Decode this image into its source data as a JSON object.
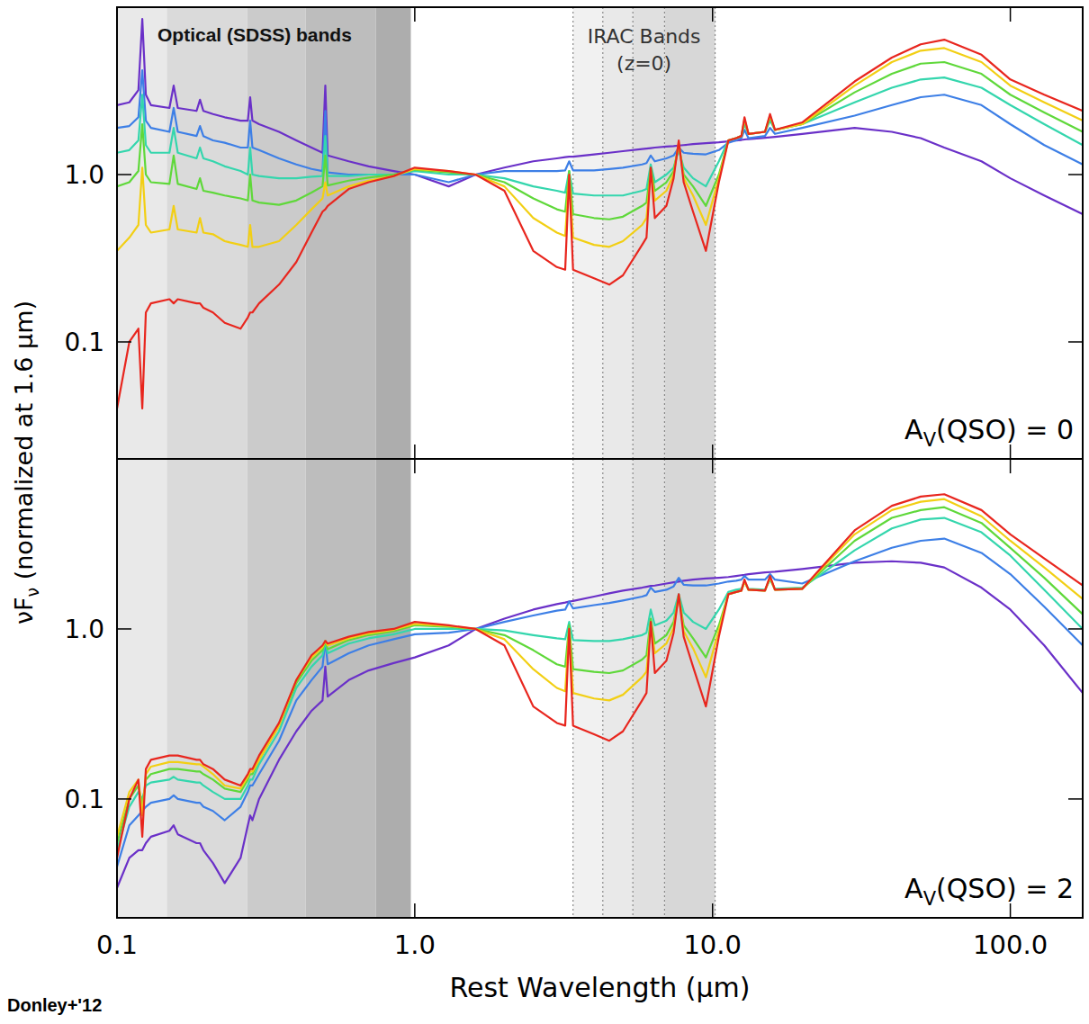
{
  "chart_data": [
    {
      "type": "line",
      "log": true,
      "tick_labels": "y",
      "xlim": [
        0.1,
        175
      ],
      "ylim": [
        0.02,
        10
      ],
      "xticks": [
        0.1,
        {
          "value": 1,
          "label": "1.0"
        },
        {
          "value": 10,
          "label": "10.0"
        },
        {
          "value": 100,
          "label": "100.0"
        }
      ],
      "yticks": [
        0.1,
        {
          "value": 1,
          "label": "1.0"
        }
      ],
      "bands": {
        "optical": [
          0.1,
          0.147,
          0.274,
          0.43,
          0.74,
          0.97
        ],
        "irac": [
          3.4,
          4.28,
          5.4,
          6.9,
          10.2
        ]
      },
      "band_labels": {
        "optical": "Optical (SDSS) bands",
        "irac": [
          "IRAC Bands",
          "(z=0)"
        ]
      },
      "panel_label": [
        {
          "text": "A"
        },
        {
          "text": "V",
          "sub": true
        },
        {
          "text": "(QSO) = 0"
        }
      ],
      "x": [
        0.1,
        0.11,
        0.118,
        0.1216,
        0.125,
        0.13,
        0.15,
        0.155,
        0.16,
        0.185,
        0.19,
        0.195,
        0.21,
        0.23,
        0.26,
        0.275,
        0.28,
        0.285,
        0.3,
        0.35,
        0.4,
        0.45,
        0.49,
        0.5007,
        0.51,
        0.6,
        0.7,
        0.85,
        1.0,
        1.3,
        1.6,
        2.0,
        2.5,
        3.0,
        3.2,
        3.3,
        3.4,
        4.0,
        4.5,
        5.0,
        5.8,
        6.0,
        6.2,
        6.4,
        7.0,
        7.4,
        7.7,
        8.0,
        8.6,
        9.5,
        10.5,
        11.3,
        12.0,
        12.5,
        12.8,
        13.2,
        15.0,
        15.6,
        16.2,
        20,
        30,
        40,
        50,
        60,
        80,
        100,
        130,
        175
      ],
      "series": [
        {
          "color": "#6a30c8",
          "values": [
            2.6,
            2.7,
            3.2,
            8.5,
            3.0,
            2.6,
            2.5,
            3.4,
            2.5,
            2.4,
            2.8,
            2.4,
            2.3,
            2.2,
            2.1,
            2.1,
            2.9,
            2.1,
            2.0,
            1.8,
            1.6,
            1.45,
            1.35,
            3.4,
            1.3,
            1.2,
            1.12,
            1.05,
            1.0,
            0.85,
            1.0,
            1.1,
            1.2,
            1.25,
            1.27,
            1.28,
            1.28,
            1.32,
            1.35,
            1.38,
            1.42,
            1.43,
            1.44,
            1.45,
            1.47,
            1.48,
            1.49,
            1.5,
            1.52,
            1.54,
            1.56,
            1.58,
            1.6,
            1.61,
            1.62,
            1.63,
            1.66,
            1.67,
            1.68,
            1.75,
            1.9,
            1.8,
            1.65,
            1.45,
            1.2,
            0.95,
            0.75,
            0.58
          ]
        },
        {
          "color": "#3d7fe6",
          "values": [
            1.9,
            1.95,
            2.2,
            4.2,
            2.1,
            1.9,
            1.8,
            2.5,
            1.8,
            1.7,
            1.95,
            1.7,
            1.6,
            1.55,
            1.45,
            1.45,
            2.1,
            1.45,
            1.4,
            1.25,
            1.15,
            1.08,
            1.05,
            2.4,
            1.03,
            1.0,
            1.0,
            1.0,
            1.0,
            0.9,
            1.0,
            1.05,
            1.05,
            1.05,
            1.06,
            1.2,
            1.06,
            1.06,
            1.08,
            1.1,
            1.15,
            1.17,
            1.3,
            1.2,
            1.25,
            1.3,
            1.45,
            1.35,
            1.33,
            1.32,
            1.4,
            1.55,
            1.6,
            1.65,
            1.85,
            1.65,
            1.7,
            1.9,
            1.75,
            1.9,
            2.25,
            2.6,
            2.9,
            3.0,
            2.6,
            2.0,
            1.5,
            1.15
          ]
        },
        {
          "color": "#34d6ad",
          "values": [
            1.35,
            1.4,
            1.6,
            3.0,
            1.5,
            1.35,
            1.35,
            1.9,
            1.35,
            1.25,
            1.45,
            1.25,
            1.2,
            1.12,
            1.05,
            1.0,
            1.45,
            1.0,
            0.98,
            0.95,
            0.95,
            0.97,
            0.98,
            1.7,
            0.98,
            0.98,
            1.0,
            1.0,
            1.05,
            1.0,
            1.0,
            0.95,
            0.85,
            0.8,
            0.78,
            1.05,
            0.77,
            0.75,
            0.75,
            0.75,
            0.8,
            0.82,
            1.15,
            0.9,
            1.0,
            1.1,
            1.4,
            1.1,
            0.95,
            0.85,
            1.2,
            1.6,
            1.65,
            1.7,
            2.0,
            1.75,
            1.8,
            2.1,
            1.85,
            2.0,
            2.7,
            3.3,
            3.7,
            3.8,
            3.3,
            2.6,
            2.0,
            1.5
          ]
        },
        {
          "color": "#5fd83a",
          "values": [
            0.85,
            0.9,
            1.05,
            2.0,
            1.0,
            0.9,
            0.88,
            1.3,
            0.88,
            0.82,
            0.95,
            0.8,
            0.78,
            0.75,
            0.72,
            0.7,
            1.0,
            0.7,
            0.68,
            0.66,
            0.7,
            0.78,
            0.85,
            1.3,
            0.86,
            0.92,
            0.96,
            1.0,
            1.07,
            1.03,
            1.0,
            0.9,
            0.72,
            0.62,
            0.6,
            1.05,
            0.58,
            0.55,
            0.54,
            0.56,
            0.65,
            0.68,
            1.1,
            0.8,
            0.9,
            1.05,
            1.5,
            1.0,
            0.85,
            0.65,
            1.0,
            1.6,
            1.65,
            1.7,
            2.1,
            1.75,
            1.8,
            2.2,
            1.85,
            2.0,
            3.1,
            4.0,
            4.6,
            4.7,
            4.0,
            3.0,
            2.35,
            1.8
          ]
        },
        {
          "color": "#f2cf14",
          "values": [
            0.35,
            0.42,
            0.5,
            1.1,
            0.5,
            0.45,
            0.47,
            0.65,
            0.47,
            0.45,
            0.55,
            0.45,
            0.44,
            0.4,
            0.38,
            0.37,
            0.5,
            0.37,
            0.37,
            0.4,
            0.5,
            0.62,
            0.72,
            0.9,
            0.75,
            0.85,
            0.92,
            0.98,
            1.08,
            1.05,
            1.0,
            0.85,
            0.55,
            0.45,
            0.43,
            1.0,
            0.42,
            0.38,
            0.37,
            0.4,
            0.5,
            0.55,
            1.05,
            0.7,
            0.8,
            1.0,
            1.55,
            0.95,
            0.75,
            0.5,
            0.95,
            1.6,
            1.65,
            1.7,
            2.15,
            1.75,
            1.8,
            2.25,
            1.85,
            2.0,
            3.4,
            4.7,
            5.5,
            5.7,
            4.7,
            3.4,
            2.7,
            2.1
          ]
        },
        {
          "color": "#e8261e",
          "values": [
            0.04,
            0.1,
            0.12,
            0.04,
            0.15,
            0.17,
            0.18,
            0.17,
            0.18,
            0.17,
            0.17,
            0.16,
            0.15,
            0.13,
            0.12,
            0.14,
            0.15,
            0.15,
            0.17,
            0.22,
            0.3,
            0.45,
            0.6,
            0.62,
            0.65,
            0.82,
            0.9,
            0.98,
            1.1,
            1.05,
            1.0,
            0.8,
            0.35,
            0.28,
            0.27,
            1.0,
            0.27,
            0.24,
            0.22,
            0.25,
            0.38,
            0.42,
            1.1,
            0.55,
            0.65,
            0.95,
            1.6,
            0.9,
            0.6,
            0.35,
            0.9,
            1.6,
            1.65,
            1.7,
            2.2,
            1.75,
            1.8,
            2.3,
            1.85,
            2.05,
            3.6,
            5.0,
            6.0,
            6.4,
            5.2,
            3.7,
            3.0,
            2.4
          ]
        }
      ]
    },
    {
      "type": "line",
      "log": true,
      "xlim": [
        0.1,
        175
      ],
      "ylim": [
        0.02,
        10
      ],
      "xticks": [
        0.1,
        {
          "value": 1,
          "label": "1.0"
        },
        {
          "value": 10,
          "label": "10.0"
        },
        {
          "value": 100,
          "label": "100.0"
        }
      ],
      "yticks": [
        0.1,
        {
          "value": 1,
          "label": "1.0"
        }
      ],
      "bands": {
        "optical": [
          0.1,
          0.147,
          0.274,
          0.43,
          0.74,
          0.97
        ],
        "irac": [
          3.4,
          4.28,
          5.4,
          6.9,
          10.2
        ]
      },
      "panel_label": [
        {
          "text": "A"
        },
        {
          "text": "V",
          "sub": true
        },
        {
          "text": "(QSO) = 2"
        }
      ],
      "xlabel": "Rest Wavelength (μm)",
      "x": [
        0.1,
        0.11,
        0.118,
        0.1216,
        0.125,
        0.13,
        0.15,
        0.155,
        0.16,
        0.185,
        0.19,
        0.195,
        0.21,
        0.23,
        0.26,
        0.275,
        0.28,
        0.285,
        0.3,
        0.35,
        0.4,
        0.45,
        0.49,
        0.5007,
        0.51,
        0.6,
        0.7,
        0.85,
        1.0,
        1.3,
        1.6,
        2.0,
        2.5,
        3.0,
        3.2,
        3.3,
        3.4,
        4.0,
        4.5,
        5.0,
        5.8,
        6.0,
        6.2,
        6.4,
        7.0,
        7.4,
        7.7,
        8.0,
        8.6,
        9.5,
        10.5,
        11.3,
        12.0,
        12.5,
        12.8,
        13.2,
        15.0,
        15.6,
        16.2,
        20,
        30,
        40,
        50,
        60,
        80,
        100,
        130,
        175
      ],
      "series": [
        {
          "color": "#6a30c8",
          "values": [
            0.03,
            0.045,
            0.05,
            0.05,
            0.055,
            0.06,
            0.065,
            0.07,
            0.062,
            0.055,
            0.055,
            0.05,
            0.042,
            0.032,
            0.045,
            0.07,
            0.08,
            0.075,
            0.1,
            0.17,
            0.25,
            0.33,
            0.38,
            0.6,
            0.4,
            0.5,
            0.57,
            0.63,
            0.68,
            0.8,
            1.0,
            1.15,
            1.3,
            1.4,
            1.43,
            1.45,
            1.46,
            1.55,
            1.62,
            1.68,
            1.75,
            1.77,
            1.79,
            1.8,
            1.85,
            1.88,
            1.9,
            1.92,
            1.95,
            1.98,
            2.0,
            2.02,
            2.05,
            2.07,
            2.08,
            2.1,
            2.15,
            2.16,
            2.17,
            2.25,
            2.45,
            2.5,
            2.45,
            2.3,
            1.75,
            1.3,
            0.8,
            0.42
          ]
        },
        {
          "color": "#3d7fe6",
          "values": [
            0.04,
            0.07,
            0.08,
            0.085,
            0.09,
            0.095,
            0.1,
            0.105,
            0.1,
            0.095,
            0.095,
            0.09,
            0.085,
            0.075,
            0.09,
            0.11,
            0.12,
            0.12,
            0.14,
            0.22,
            0.38,
            0.5,
            0.6,
            0.85,
            0.62,
            0.72,
            0.8,
            0.87,
            0.93,
            0.95,
            1.0,
            1.1,
            1.2,
            1.28,
            1.3,
            1.45,
            1.32,
            1.38,
            1.42,
            1.47,
            1.55,
            1.58,
            1.75,
            1.65,
            1.7,
            1.78,
            2.0,
            1.82,
            1.8,
            1.8,
            1.85,
            1.9,
            1.92,
            1.95,
            2.05,
            1.95,
            1.95,
            2.1,
            1.95,
            1.85,
            2.5,
            3.0,
            3.3,
            3.4,
            2.8,
            2.1,
            1.35,
            0.8
          ]
        },
        {
          "color": "#34d6ad",
          "values": [
            0.05,
            0.09,
            0.11,
            0.1,
            0.12,
            0.125,
            0.13,
            0.135,
            0.13,
            0.125,
            0.125,
            0.12,
            0.11,
            0.1,
            0.1,
            0.12,
            0.13,
            0.13,
            0.16,
            0.25,
            0.45,
            0.6,
            0.7,
            0.85,
            0.72,
            0.82,
            0.88,
            0.93,
            1.0,
            1.0,
            1.0,
            0.98,
            0.92,
            0.88,
            0.87,
            1.1,
            0.86,
            0.85,
            0.85,
            0.87,
            0.92,
            0.95,
            1.3,
            1.05,
            1.12,
            1.25,
            1.6,
            1.25,
            1.1,
            1.0,
            1.3,
            1.65,
            1.7,
            1.72,
            1.9,
            1.72,
            1.7,
            1.95,
            1.72,
            1.75,
            2.9,
            3.9,
            4.4,
            4.5,
            3.7,
            2.7,
            1.7,
            1.0
          ]
        },
        {
          "color": "#5fd83a",
          "values": [
            0.055,
            0.1,
            0.12,
            0.09,
            0.13,
            0.14,
            0.15,
            0.15,
            0.15,
            0.145,
            0.145,
            0.14,
            0.13,
            0.115,
            0.11,
            0.13,
            0.14,
            0.14,
            0.17,
            0.27,
            0.48,
            0.65,
            0.75,
            0.85,
            0.76,
            0.86,
            0.92,
            0.97,
            1.05,
            1.03,
            1.0,
            0.92,
            0.75,
            0.62,
            0.6,
            1.05,
            0.58,
            0.56,
            0.55,
            0.57,
            0.66,
            0.7,
            1.15,
            0.82,
            0.92,
            1.1,
            1.55,
            1.05,
            0.88,
            0.68,
            1.05,
            1.6,
            1.65,
            1.68,
            1.9,
            1.7,
            1.68,
            2.0,
            1.7,
            1.72,
            3.3,
            4.5,
            5.0,
            5.2,
            4.2,
            3.0,
            2.0,
            1.22
          ]
        },
        {
          "color": "#f2cf14",
          "values": [
            0.06,
            0.11,
            0.13,
            0.08,
            0.14,
            0.155,
            0.165,
            0.165,
            0.165,
            0.16,
            0.16,
            0.155,
            0.14,
            0.12,
            0.115,
            0.135,
            0.145,
            0.145,
            0.17,
            0.27,
            0.5,
            0.68,
            0.78,
            0.85,
            0.8,
            0.88,
            0.94,
            0.99,
            1.07,
            1.04,
            1.0,
            0.87,
            0.58,
            0.45,
            0.43,
            1.0,
            0.42,
            0.39,
            0.38,
            0.41,
            0.52,
            0.56,
            1.08,
            0.72,
            0.82,
            1.02,
            1.58,
            0.97,
            0.77,
            0.52,
            0.98,
            1.6,
            1.65,
            1.68,
            1.9,
            1.7,
            1.68,
            2.0,
            1.7,
            1.72,
            3.6,
            5.0,
            5.6,
            5.8,
            4.6,
            3.3,
            2.3,
            1.5
          ]
        },
        {
          "color": "#e8261e",
          "values": [
            0.045,
            0.1,
            0.13,
            0.06,
            0.15,
            0.17,
            0.18,
            0.18,
            0.18,
            0.17,
            0.17,
            0.16,
            0.15,
            0.13,
            0.12,
            0.14,
            0.15,
            0.15,
            0.18,
            0.28,
            0.5,
            0.7,
            0.8,
            0.85,
            0.82,
            0.9,
            0.96,
            1.0,
            1.1,
            1.05,
            1.0,
            0.8,
            0.35,
            0.28,
            0.27,
            1.0,
            0.27,
            0.24,
            0.22,
            0.25,
            0.38,
            0.42,
            1.1,
            0.55,
            0.65,
            0.95,
            1.6,
            0.9,
            0.6,
            0.35,
            0.9,
            1.6,
            1.65,
            1.68,
            1.95,
            1.7,
            1.68,
            2.05,
            1.7,
            1.72,
            3.8,
            5.3,
            6.0,
            6.2,
            5.0,
            3.6,
            2.6,
            1.8
          ]
        }
      ]
    }
  ],
  "figure": {
    "ylabel": [
      {
        "text": "νF"
      },
      {
        "text": "ν",
        "sub": true
      },
      {
        "text": " (normalized at 1.6 μm)"
      }
    ],
    "source": "Donley+'12"
  }
}
